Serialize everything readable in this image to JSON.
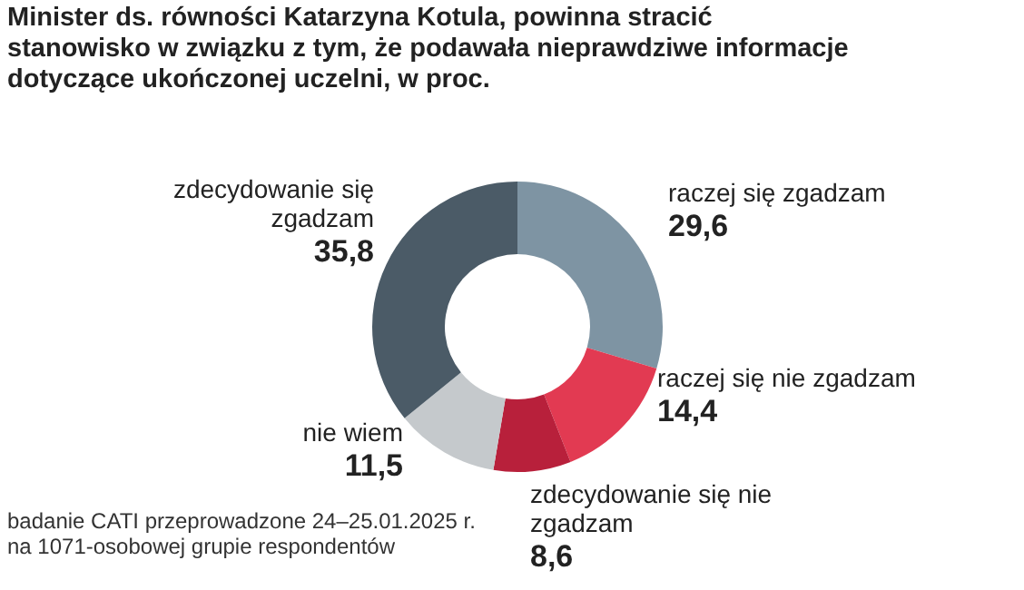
{
  "chart_data": {
    "type": "donut",
    "title": "Minister ds. równości Katarzyna Kotula, powinna stracić stanowisko w związku z tym, że podawała nieprawdziwe informacje dotyczące ukończonej uczelni, w proc.",
    "categories": [
      "raczej się zgadzam",
      "raczej się nie zgadzam",
      "zdecydowanie się nie zgadzam",
      "nie wiem",
      "zdecydowanie się zgadzam"
    ],
    "values": [
      29.6,
      14.4,
      8.6,
      11.5,
      35.8
    ],
    "colors": [
      "#7e94a3",
      "#e23a52",
      "#b8203b",
      "#c5c9cc",
      "#4b5b67"
    ],
    "value_labels": [
      "29,6",
      "14,4",
      "8,6",
      "11,5",
      "35,8"
    ],
    "legend": false,
    "annotations": [
      "badanie CATI przeprowadzone 24–25.01.2025 r. na 1071-osobowej grupie respondentów"
    ]
  }
}
